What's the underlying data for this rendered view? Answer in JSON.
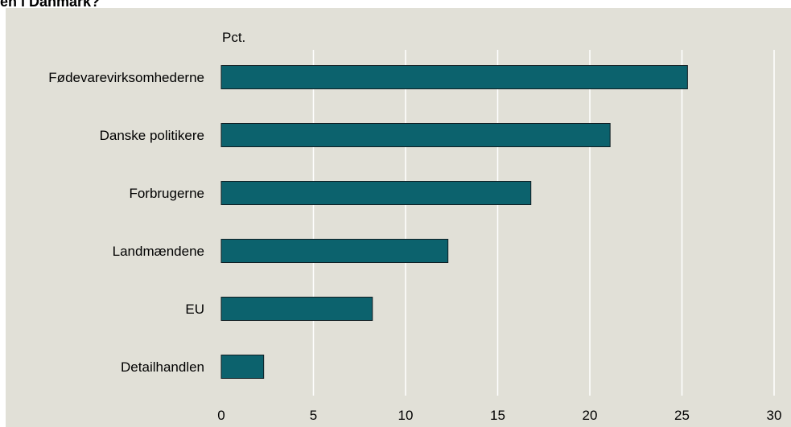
{
  "page": {
    "title": "en i Danmark?"
  },
  "colors": {
    "plot_background": "#e1e0d7",
    "bar_fill": "#0c626d",
    "bar_stroke": "#0f1d22",
    "grid": "#ffffff",
    "text": "#000000"
  },
  "chart_data": {
    "type": "bar",
    "orientation": "horizontal",
    "title": "",
    "unit_label": "Pct.",
    "xlabel": "",
    "ylabel": "",
    "categories": [
      "Fødevarevirksomhederne",
      "Danske politikere",
      "Forbrugerne",
      "Landmændene",
      "EU",
      "Detailhandlen"
    ],
    "values": [
      25.3,
      21.1,
      16.8,
      12.3,
      8.2,
      2.3
    ],
    "xlim": [
      0,
      30
    ],
    "xticks": [
      "0",
      "5",
      "10",
      "15",
      "20",
      "25",
      "30"
    ],
    "grid": true
  }
}
